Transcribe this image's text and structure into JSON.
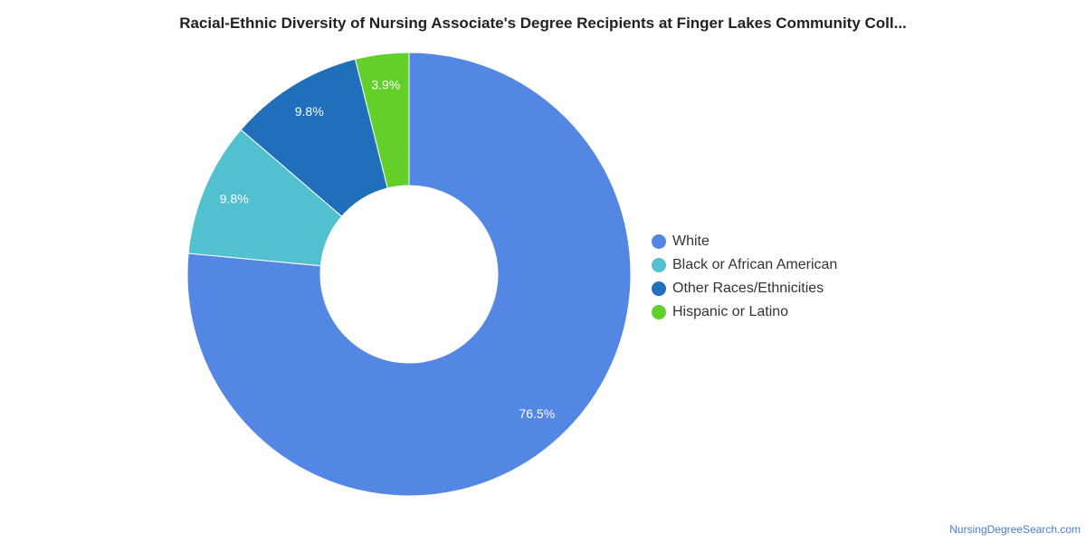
{
  "chart_data": {
    "type": "pie",
    "title": "Racial-Ethnic Diversity of Nursing Associate's Degree Recipients at Finger Lakes Community Coll...",
    "donut": true,
    "legend_position": "right",
    "slices": [
      {
        "name": "White",
        "value": 76.5,
        "label": "76.5%",
        "color": "#5486e3"
      },
      {
        "name": "Black or African American",
        "value": 9.8,
        "label": "9.8%",
        "color": "#52c1cf"
      },
      {
        "name": "Other Races/Ethnicities",
        "value": 9.8,
        "label": "9.8%",
        "color": "#1f6fbb"
      },
      {
        "name": "Hispanic or Latino",
        "value": 3.9,
        "label": "3.9%",
        "color": "#62cf2a"
      }
    ]
  },
  "footer": {
    "source": "NursingDegreeSearch.com"
  }
}
